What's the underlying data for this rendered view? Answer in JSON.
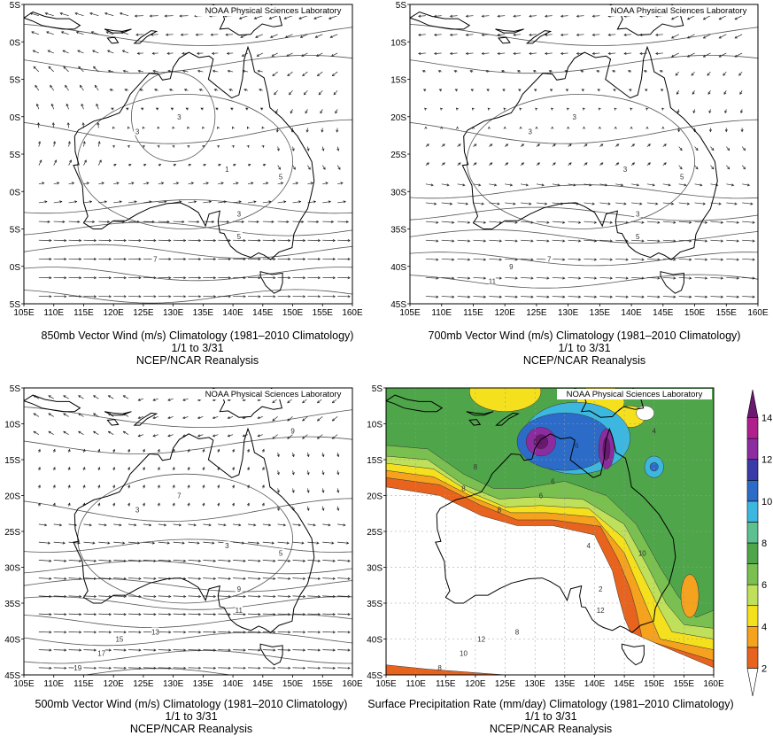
{
  "credit": "NOAA Physical Sciences Laboratory",
  "lon_ticks": [
    "105E",
    "110E",
    "115E",
    "120E",
    "125E",
    "130E",
    "135E",
    "140E",
    "145E",
    "150E",
    "155E",
    "160E"
  ],
  "lat_ticks_full": [
    "5S",
    "10S",
    "15S",
    "20S",
    "25S",
    "30S",
    "35S",
    "40S",
    "45S"
  ],
  "lat_ticks_cropped": [
    "5S",
    "0S",
    "5S",
    "0S",
    "5S",
    "0S",
    "5S",
    "0S",
    "5S"
  ],
  "panels": [
    {
      "title": "850mb Vector Wind (m/s) Climatology (1981–2010 Climatology)",
      "dates": "1/1 to 3/31",
      "source": "NCEP/NCAR Reanalysis",
      "contour_labels": [
        "3",
        "5",
        "3",
        "1",
        "3",
        "5",
        "7"
      ]
    },
    {
      "title": "700mb Vector Wind (m/s) Climatology (1981–2010 Climatology)",
      "dates": "1/1 to 3/31",
      "source": "NCEP/NCAR Reanalysis",
      "contour_labels": [
        "3",
        "5",
        "3",
        "3",
        "3",
        "5",
        "7",
        "9",
        "11"
      ]
    },
    {
      "title": "500mb Vector Wind (m/s) Climatology (1981–2010 Climatology)",
      "dates": "1/1 to 3/31",
      "source": "NCEP/NCAR Reanalysis",
      "contour_labels": [
        "3",
        "5",
        "7",
        "3",
        "9",
        "11",
        "13",
        "15",
        "17",
        "19",
        "9"
      ]
    },
    {
      "title": "Surface Precipitation Rate (mm/day) Climatology (1981–2010 Climatology)",
      "dates": "1/1 to 3/31",
      "source": "NCEP/NCAR Reanalysis",
      "contour_labels": [
        "8",
        "10",
        "6",
        "4",
        "2",
        "12",
        "8",
        "12",
        "10",
        "8",
        "4",
        "6",
        "8",
        "8",
        "6",
        "4"
      ]
    }
  ],
  "colorbar": {
    "ticks": [
      "2",
      "4",
      "6",
      "8",
      "10",
      "12",
      "14"
    ],
    "colors": [
      "#ffffff",
      "#e8641e",
      "#f5a21e",
      "#f5e01e",
      "#bfe05a",
      "#7ac050",
      "#4fa64a",
      "#5cc090",
      "#3cb8e0",
      "#2c6cc8",
      "#3a3aa8",
      "#8c2ca0",
      "#b0208c",
      "#6a1870"
    ]
  },
  "chart_data": [
    {
      "type": "vector-contour-map",
      "title": "850mb Vector Wind (m/s) Climatology (1981–2010 Climatology)",
      "lon_range": [
        "105E",
        "160E"
      ],
      "lat_range": [
        "5S",
        "45S"
      ],
      "variable": "Vector Wind (m/s)",
      "level": "850mb",
      "period": "1/1 to 3/31",
      "isotach_labels": [
        1,
        3,
        5,
        7
      ]
    },
    {
      "type": "vector-contour-map",
      "title": "700mb Vector Wind (m/s) Climatology (1981–2010 Climatology)",
      "lon_range": [
        "105E",
        "160E"
      ],
      "lat_range": [
        "5S",
        "45S"
      ],
      "variable": "Vector Wind (m/s)",
      "level": "700mb",
      "period": "1/1 to 3/31",
      "isotach_labels": [
        3,
        5,
        7,
        9,
        11
      ]
    },
    {
      "type": "vector-contour-map",
      "title": "500mb Vector Wind (m/s) Climatology (1981–2010 Climatology)",
      "lon_range": [
        "105E",
        "160E"
      ],
      "lat_range": [
        "5S",
        "45S"
      ],
      "variable": "Vector Wind (m/s)",
      "level": "500mb",
      "period": "1/1 to 3/31",
      "isotach_labels": [
        3,
        5,
        7,
        9,
        11,
        13,
        15,
        17,
        19
      ]
    },
    {
      "type": "filled-contour-map",
      "title": "Surface Precipitation Rate (mm/day) Climatology (1981–2010 Climatology)",
      "lon_range": [
        "105E",
        "160E"
      ],
      "lat_range": [
        "5S",
        "45S"
      ],
      "variable": "Surface Precipitation Rate (mm/day)",
      "period": "1/1 to 3/31",
      "colorbar_levels": [
        2,
        4,
        6,
        8,
        10,
        12,
        14
      ],
      "max_regions_mm_day": [
        {
          "lon": 131,
          "lat": -12.5,
          "value": 13
        },
        {
          "lon": 142,
          "lat": -13.5,
          "value": 13
        },
        {
          "lon": 150,
          "lat": -16,
          "value": 10
        }
      ]
    }
  ]
}
